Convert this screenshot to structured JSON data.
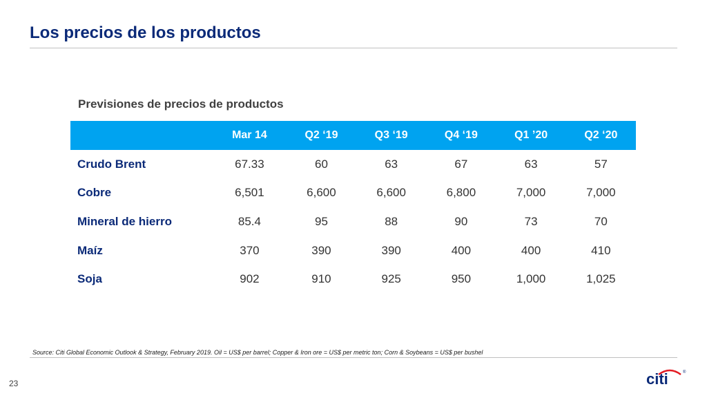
{
  "slide": {
    "title": "Los precios de los productos",
    "page_number": "23",
    "source_note": "Source: Citi Global Economic Outlook & Strategy, February 2019. Oil = US$ per barrel; Copper & Iron ore = US$ per metric ton; Corn & Soybeans = US$ per bushel",
    "logo_text": "citi",
    "logo_mark": "®"
  },
  "table": {
    "caption": "Previsiones de precios de productos",
    "columns": [
      "",
      "Mar 14",
      "Q2 ‘19",
      "Q3 ‘19",
      "Q4 ‘19",
      "Q1 ’20",
      "Q2 ‘20"
    ],
    "rows": [
      {
        "label": "Crudo Brent",
        "values": [
          "67.33",
          "60",
          "63",
          "67",
          "63",
          "57"
        ]
      },
      {
        "label": "Cobre",
        "values": [
          "6,501",
          "6,600",
          "6,600",
          "6,800",
          "7,000",
          "7,000"
        ]
      },
      {
        "label": "Mineral de hierro",
        "values": [
          "85.4",
          "95",
          "88",
          "90",
          "73",
          "70"
        ]
      },
      {
        "label": "Maíz",
        "values": [
          "370",
          "390",
          "390",
          "400",
          "400",
          "410"
        ]
      },
      {
        "label": "Soja",
        "values": [
          "902",
          "910",
          "925",
          "950",
          "1,000",
          "1,025"
        ]
      }
    ]
  },
  "colors": {
    "title": "#0b2a78",
    "header_bg": "#00a3f0",
    "logo_arc": "#e31b23"
  }
}
